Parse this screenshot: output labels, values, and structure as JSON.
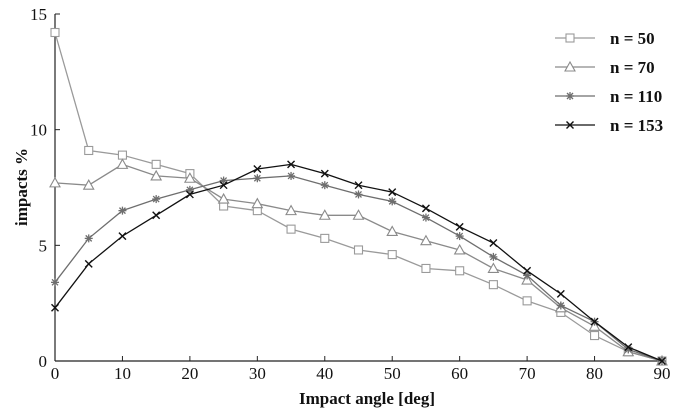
{
  "chart_data": {
    "type": "line",
    "title": "",
    "xlabel": "Impact angle [deg]",
    "ylabel": "impacts %",
    "xlim": [
      0,
      90
    ],
    "ylim": [
      0,
      15
    ],
    "xticks": [
      0,
      10,
      20,
      30,
      40,
      50,
      60,
      70,
      80,
      90
    ],
    "yticks": [
      0,
      5,
      10,
      15
    ],
    "grid": false,
    "legend_position": "top-right",
    "x": [
      0,
      5,
      10,
      15,
      20,
      25,
      30,
      35,
      40,
      45,
      50,
      55,
      60,
      65,
      70,
      75,
      80,
      85,
      90
    ],
    "series": [
      {
        "name": "n = 50",
        "marker": "square",
        "color": "#9a9a9a",
        "values": [
          14.2,
          9.1,
          8.9,
          8.5,
          8.1,
          6.7,
          6.5,
          5.7,
          5.3,
          4.8,
          4.6,
          4.0,
          3.9,
          3.3,
          2.6,
          2.1,
          1.1,
          0.4,
          0.0
        ]
      },
      {
        "name": "n = 70",
        "marker": "triangle",
        "color": "#8a8a8a",
        "values": [
          7.7,
          7.6,
          8.5,
          8.0,
          7.9,
          7.0,
          6.8,
          6.5,
          6.3,
          6.3,
          5.6,
          5.2,
          4.8,
          4.0,
          3.5,
          2.3,
          1.5,
          0.4,
          0.0
        ]
      },
      {
        "name": "n = 110",
        "marker": "asterisk",
        "color": "#6e6e6e",
        "values": [
          3.4,
          5.3,
          6.5,
          7.0,
          7.4,
          7.8,
          7.9,
          8.0,
          7.6,
          7.2,
          6.9,
          6.2,
          5.4,
          4.5,
          3.7,
          2.4,
          1.7,
          0.5,
          0.0
        ]
      },
      {
        "name": "n = 153",
        "marker": "cross",
        "color": "#111111",
        "values": [
          2.3,
          4.2,
          5.4,
          6.3,
          7.2,
          7.6,
          8.3,
          8.5,
          8.1,
          7.6,
          7.3,
          6.6,
          5.8,
          5.1,
          3.9,
          2.9,
          1.7,
          0.6,
          0.0
        ]
      }
    ]
  }
}
